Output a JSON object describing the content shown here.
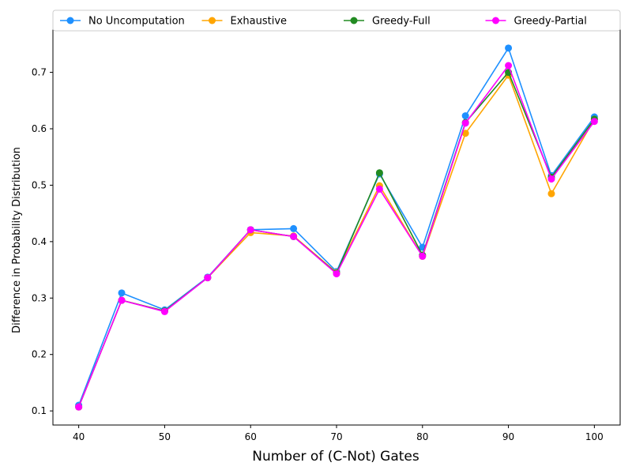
{
  "chart_data": {
    "type": "line",
    "title": "",
    "xlabel": "Number of (C-Not) Gates",
    "ylabel": "Difference in Probability Distribution",
    "x": [
      40,
      45,
      50,
      55,
      60,
      65,
      70,
      75,
      80,
      85,
      90,
      95,
      100
    ],
    "xlim": [
      37,
      103
    ],
    "ylim": [
      0.075,
      0.775
    ],
    "xticks": [
      40,
      50,
      60,
      70,
      80,
      90,
      100
    ],
    "yticks": [
      0.1,
      0.2,
      0.3,
      0.4,
      0.5,
      0.6,
      0.7
    ],
    "xtick_labels": [
      "40",
      "50",
      "60",
      "70",
      "80",
      "90",
      "100"
    ],
    "ytick_labels": [
      "0.1",
      "0.2",
      "0.3",
      "0.4",
      "0.5",
      "0.6",
      "0.7"
    ],
    "grid": false,
    "legend_position": "top",
    "series": [
      {
        "name": "No Uncomputation",
        "color": "#1e90ff",
        "values": [
          0.11,
          0.309,
          0.279,
          0.337,
          0.421,
          0.423,
          0.347,
          0.52,
          0.39,
          0.623,
          0.743,
          0.517,
          0.621
        ]
      },
      {
        "name": "Exhaustive",
        "color": "#ffa500",
        "values": [
          0.107,
          0.296,
          0.277,
          0.336,
          0.416,
          0.41,
          0.345,
          0.499,
          0.374,
          0.592,
          0.695,
          0.485,
          0.617
        ]
      },
      {
        "name": "Greedy-Full",
        "color": "#228b22",
        "values": [
          0.107,
          0.296,
          0.277,
          0.336,
          0.421,
          0.409,
          0.344,
          0.522,
          0.376,
          0.611,
          0.7,
          0.514,
          0.617
        ]
      },
      {
        "name": "Greedy-Partial",
        "color": "#ff00ff",
        "values": [
          0.107,
          0.296,
          0.276,
          0.336,
          0.421,
          0.409,
          0.343,
          0.493,
          0.374,
          0.61,
          0.712,
          0.511,
          0.613
        ]
      }
    ]
  }
}
